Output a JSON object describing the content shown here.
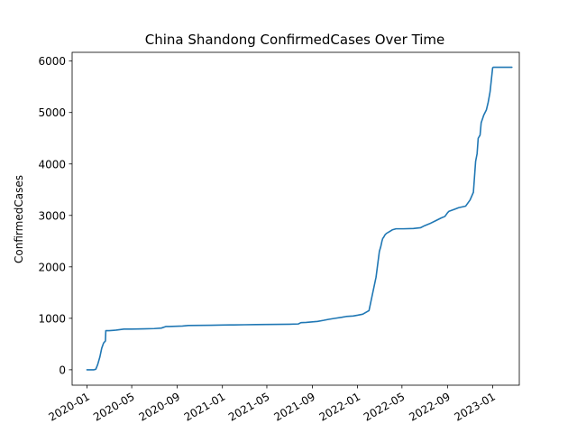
{
  "chart_data": {
    "type": "line",
    "title": "China Shandong ConfirmedCases Over Time",
    "xlabel": "",
    "ylabel": "ConfirmedCases",
    "x_tick_labels": [
      "2020-01",
      "2020-05",
      "2020-09",
      "2021-01",
      "2021-05",
      "2021-09",
      "2022-01",
      "2022-05",
      "2022-09",
      "2023-01"
    ],
    "x_ticks": [
      "2020-01-01",
      "2020-05-01",
      "2020-09-01",
      "2021-01-01",
      "2021-05-01",
      "2021-09-01",
      "2022-01-01",
      "2022-05-01",
      "2022-09-01",
      "2023-01-01"
    ],
    "y_ticks": [
      0,
      1000,
      2000,
      3000,
      4000,
      5000,
      6000
    ],
    "y_tick_labels": [
      "0",
      "1000",
      "2000",
      "3000",
      "4000",
      "5000",
      "6000"
    ],
    "xlim": [
      "2019-11-22",
      "2023-03-14"
    ],
    "ylim": [
      -300,
      6170
    ],
    "grid": false,
    "color": "#1f77b4",
    "series": [
      {
        "x": [
          "2020-01-01",
          "2020-01-20",
          "2020-01-25",
          "2020-01-30",
          "2020-02-05",
          "2020-02-10",
          "2020-02-15",
          "2020-02-20",
          "2020-02-21",
          "2020-03-01",
          "2020-03-20",
          "2020-04-10",
          "2020-05-01",
          "2020-06-01",
          "2020-07-01",
          "2020-07-20",
          "2020-08-01",
          "2020-08-10",
          "2020-09-15",
          "2020-10-01",
          "2020-11-01",
          "2020-12-01",
          "2021-01-01",
          "2021-02-01",
          "2021-03-01",
          "2021-04-01",
          "2021-05-01",
          "2021-06-01",
          "2021-07-01",
          "2021-07-25",
          "2021-08-01",
          "2021-08-15",
          "2021-09-01",
          "2021-09-15",
          "2021-10-01",
          "2021-10-15",
          "2021-11-01",
          "2021-11-20",
          "2021-12-01",
          "2021-12-20",
          "2022-01-01",
          "2022-01-15",
          "2022-02-01",
          "2022-02-20",
          "2022-03-01",
          "2022-03-05",
          "2022-03-08",
          "2022-03-10",
          "2022-03-13",
          "2022-03-16",
          "2022-03-20",
          "2022-03-27",
          "2022-04-05",
          "2022-04-15",
          "2022-04-25",
          "2022-05-05",
          "2022-06-01",
          "2022-06-20",
          "2022-07-01",
          "2022-07-15",
          "2022-08-01",
          "2022-08-15",
          "2022-08-25",
          "2022-09-01",
          "2022-09-05",
          "2022-09-20",
          "2022-10-01",
          "2022-10-20",
          "2022-11-01",
          "2022-11-10",
          "2022-11-16",
          "2022-11-20",
          "2022-11-23",
          "2022-11-28",
          "2022-12-01",
          "2022-12-08",
          "2022-12-15",
          "2022-12-20",
          "2022-12-25",
          "2023-01-01",
          "2023-01-03",
          "2023-01-05",
          "2023-01-07",
          "2023-01-10",
          "2023-02-01",
          "2023-02-22"
        ],
        "values": [
          0,
          0,
          10,
          100,
          250,
          420,
          520,
          560,
          760,
          760,
          770,
          790,
          790,
          795,
          800,
          810,
          840,
          840,
          850,
          860,
          862,
          865,
          870,
          872,
          875,
          878,
          880,
          882,
          885,
          890,
          915,
          920,
          930,
          940,
          960,
          980,
          1000,
          1020,
          1035,
          1045,
          1060,
          1080,
          1150,
          1800,
          2300,
          2400,
          2500,
          2550,
          2580,
          2620,
          2650,
          2680,
          2720,
          2740,
          2740,
          2740,
          2745,
          2760,
          2800,
          2840,
          2900,
          2950,
          2980,
          3050,
          3080,
          3120,
          3150,
          3180,
          3300,
          3450,
          4050,
          4200,
          4500,
          4560,
          4800,
          4950,
          5050,
          5200,
          5400,
          5870,
          5880,
          5880,
          5880,
          5880,
          5880,
          5880
        ]
      }
    ]
  }
}
